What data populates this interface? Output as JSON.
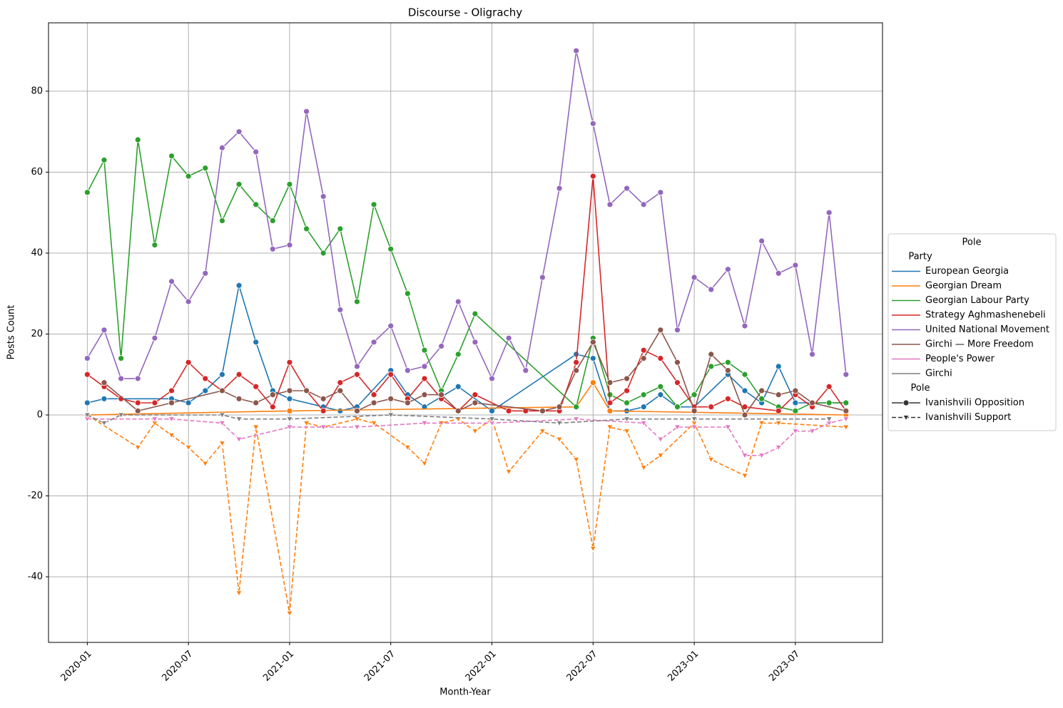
{
  "chart_data": {
    "type": "line",
    "title": "Discourse - Oligrachy",
    "x_label": "Month-Year",
    "y_label": "Posts Count",
    "xlim": [
      "2019-10-22",
      "2023-12-06"
    ],
    "xticks": [
      "2020-01",
      "2020-07",
      "2021-01",
      "2021-07",
      "2022-01",
      "2022-07",
      "2023-01",
      "2023-07"
    ],
    "ylim": [
      -56.2,
      96.9
    ],
    "yticks": [
      -40,
      -20,
      0,
      20,
      40,
      60,
      80
    ],
    "grid": true,
    "legend": {
      "title": "Pole",
      "position": "right",
      "hue_title": "Party",
      "style_title": "Pole"
    },
    "parties": [
      {
        "name": "European Georgia",
        "color": "#1f77b4"
      },
      {
        "name": "Georgian Dream",
        "color": "#ff7f0e"
      },
      {
        "name": "Georgian Labour Party",
        "color": "#2ca02c"
      },
      {
        "name": "Strategy Aghmashenebeli",
        "color": "#d62728"
      },
      {
        "name": "United National Movement",
        "color": "#9467bd"
      },
      {
        "name": "Girchi — More Freedom",
        "color": "#8c564b"
      },
      {
        "name": "People's Power",
        "color": "#e377c2"
      },
      {
        "name": "Girchi",
        "color": "#7f7f7f"
      }
    ],
    "poles": [
      {
        "name": "Ivanishvili Opposition",
        "marker": "circle",
        "dashed": false
      },
      {
        "name": "Ivanishvili Support",
        "marker": "triangle-down",
        "dashed": true
      }
    ],
    "series": [
      {
        "party": 0,
        "pole": 0,
        "x": [
          "2020-01",
          "2020-02",
          "2020-03",
          "2020-06",
          "2020-07",
          "2020-08",
          "2020-09",
          "2020-10",
          "2020-11",
          "2020-12",
          "2021-01",
          "2021-03",
          "2021-04",
          "2021-05",
          "2021-07",
          "2021-08",
          "2021-09",
          "2021-11",
          "2022-01",
          "2022-06",
          "2022-07",
          "2022-08",
          "2022-09",
          "2022-10",
          "2022-11",
          "2022-12",
          "2023-01",
          "2023-03",
          "2023-04",
          "2023-05",
          "2023-06",
          "2023-07",
          "2023-08",
          "2023-09",
          "2023-10"
        ],
        "values": [
          3,
          4,
          4,
          4,
          3,
          6,
          10,
          32,
          18,
          6,
          4,
          2,
          1,
          2,
          11,
          5,
          2,
          7,
          1,
          15,
          14,
          1,
          1,
          2,
          5,
          2,
          2,
          10,
          6,
          3,
          12,
          3,
          3,
          3,
          3
        ]
      },
      {
        "party": 1,
        "pole": 0,
        "x": [
          "2020-01",
          "2021-01",
          "2022-06",
          "2022-07",
          "2022-08",
          "2023-10"
        ],
        "values": [
          0,
          1,
          2,
          8,
          1,
          0
        ]
      },
      {
        "party": 1,
        "pole": 1,
        "x": [
          "2020-01",
          "2020-04",
          "2020-05",
          "2020-06",
          "2020-07",
          "2020-08",
          "2020-09",
          "2020-10",
          "2020-11",
          "2021-01",
          "2021-02",
          "2021-03",
          "2021-05",
          "2021-06",
          "2021-08",
          "2021-09",
          "2021-10",
          "2021-11",
          "2021-12",
          "2022-01",
          "2022-02",
          "2022-04",
          "2022-05",
          "2022-06",
          "2022-07",
          "2022-08",
          "2022-09",
          "2022-10",
          "2022-11",
          "2023-01",
          "2023-02",
          "2023-04",
          "2023-05",
          "2023-06",
          "2023-10"
        ],
        "values": [
          0,
          -8,
          -2,
          -5,
          -8,
          -12,
          -7,
          -44,
          -3,
          -49,
          -2,
          -3,
          -1,
          -2,
          -8,
          -12,
          -2,
          -1,
          -4,
          -1,
          -14,
          -4,
          -6,
          -11,
          -33,
          -3,
          -4,
          -13,
          -10,
          -2,
          -11,
          -15,
          -2,
          -2,
          -3
        ]
      },
      {
        "party": 2,
        "pole": 0,
        "x": [
          "2020-01",
          "2020-02",
          "2020-03",
          "2020-04",
          "2020-05",
          "2020-06",
          "2020-07",
          "2020-08",
          "2020-09",
          "2020-10",
          "2020-11",
          "2020-12",
          "2021-01",
          "2021-02",
          "2021-03",
          "2021-04",
          "2021-05",
          "2021-06",
          "2021-07",
          "2021-08",
          "2021-09",
          "2021-10",
          "2021-11",
          "2021-12",
          "2022-06",
          "2022-07",
          "2022-08",
          "2022-09",
          "2022-10",
          "2022-11",
          "2022-12",
          "2023-01",
          "2023-02",
          "2023-03",
          "2023-04",
          "2023-05",
          "2023-06",
          "2023-07",
          "2023-08",
          "2023-09",
          "2023-10"
        ],
        "values": [
          55,
          63,
          14,
          68,
          42,
          64,
          59,
          61,
          48,
          57,
          52,
          48,
          57,
          46,
          40,
          46,
          28,
          52,
          41,
          30,
          16,
          6,
          15,
          25,
          2,
          19,
          5,
          3,
          5,
          7,
          2,
          5,
          12,
          13,
          10,
          4,
          2,
          1,
          3,
          3,
          3
        ]
      },
      {
        "party": 3,
        "pole": 0,
        "x": [
          "2020-01",
          "2020-02",
          "2020-03",
          "2020-04",
          "2020-05",
          "2020-06",
          "2020-07",
          "2020-08",
          "2020-09",
          "2020-10",
          "2020-11",
          "2020-12",
          "2021-01",
          "2021-02",
          "2021-03",
          "2021-04",
          "2021-05",
          "2021-06",
          "2021-07",
          "2021-08",
          "2021-09",
          "2021-10",
          "2021-11",
          "2021-12",
          "2022-02",
          "2022-03",
          "2022-04",
          "2022-05",
          "2022-06",
          "2022-07",
          "2022-08",
          "2022-09",
          "2022-10",
          "2022-11",
          "2022-12",
          "2023-01",
          "2023-02",
          "2023-03",
          "2023-04",
          "2023-06",
          "2023-07",
          "2023-08",
          "2023-09",
          "2023-10"
        ],
        "values": [
          10,
          7,
          4,
          3,
          3,
          6,
          13,
          9,
          6,
          10,
          7,
          2,
          13,
          6,
          1,
          8,
          10,
          5,
          10,
          4,
          9,
          4,
          1,
          5,
          1,
          1,
          1,
          1,
          13,
          59,
          3,
          6,
          16,
          14,
          8,
          2,
          2,
          4,
          2,
          1,
          5,
          2,
          7,
          1
        ]
      },
      {
        "party": 4,
        "pole": 0,
        "x": [
          "2020-01",
          "2020-02",
          "2020-03",
          "2020-04",
          "2020-05",
          "2020-06",
          "2020-07",
          "2020-08",
          "2020-09",
          "2020-10",
          "2020-11",
          "2020-12",
          "2021-01",
          "2021-02",
          "2021-03",
          "2021-04",
          "2021-05",
          "2021-06",
          "2021-07",
          "2021-08",
          "2021-09",
          "2021-10",
          "2021-11",
          "2021-12",
          "2022-01",
          "2022-02",
          "2022-03",
          "2022-04",
          "2022-05",
          "2022-06",
          "2022-07",
          "2022-08",
          "2022-09",
          "2022-10",
          "2022-11",
          "2022-12",
          "2023-01",
          "2023-02",
          "2023-03",
          "2023-04",
          "2023-05",
          "2023-06",
          "2023-07",
          "2023-08",
          "2023-09",
          "2023-10"
        ],
        "values": [
          14,
          21,
          9,
          9,
          19,
          33,
          28,
          35,
          66,
          70,
          65,
          41,
          42,
          75,
          54,
          26,
          12,
          18,
          22,
          11,
          12,
          17,
          28,
          18,
          9,
          19,
          11,
          34,
          56,
          90,
          72,
          52,
          56,
          52,
          55,
          21,
          34,
          31,
          36,
          22,
          43,
          35,
          37,
          15,
          50,
          10
        ]
      },
      {
        "party": 5,
        "pole": 0,
        "x": [
          "2020-02",
          "2020-04",
          "2020-06",
          "2020-09",
          "2020-10",
          "2020-11",
          "2020-12",
          "2021-01",
          "2021-02",
          "2021-03",
          "2021-04",
          "2021-05",
          "2021-06",
          "2021-07",
          "2021-08",
          "2021-09",
          "2021-10",
          "2021-11",
          "2021-12",
          "2022-04",
          "2022-05",
          "2022-06",
          "2022-07",
          "2022-08",
          "2022-09",
          "2022-10",
          "2022-11",
          "2022-12",
          "2023-01",
          "2023-02",
          "2023-03",
          "2023-04",
          "2023-05",
          "2023-06",
          "2023-07",
          "2023-08",
          "2023-10"
        ],
        "values": [
          8,
          1,
          3,
          6,
          4,
          3,
          5,
          6,
          6,
          4,
          6,
          1,
          3,
          4,
          3,
          5,
          5,
          1,
          3,
          1,
          2,
          11,
          18,
          8,
          9,
          14,
          21,
          13,
          1,
          15,
          11,
          0,
          6,
          5,
          6,
          3,
          1
        ]
      },
      {
        "party": 6,
        "pole": 1,
        "x": [
          "2020-01",
          "2020-05",
          "2020-06",
          "2020-09",
          "2020-10",
          "2021-01",
          "2021-03",
          "2021-05",
          "2021-09",
          "2022-01",
          "2022-06",
          "2022-10",
          "2022-11",
          "2022-12",
          "2023-01",
          "2023-03",
          "2023-04",
          "2023-05",
          "2023-06",
          "2023-07",
          "2023-08",
          "2023-09",
          "2023-10"
        ],
        "values": [
          -1,
          -1,
          -1,
          -2,
          -6,
          -3,
          -3,
          -3,
          -2,
          -2,
          -1,
          -2,
          -6,
          -3,
          -3,
          -3,
          -10,
          -10,
          -8,
          -4,
          -4,
          -2,
          -1
        ]
      },
      {
        "party": 7,
        "pole": 1,
        "x": [
          "2020-01",
          "2020-02",
          "2020-03",
          "2020-09",
          "2020-10",
          "2021-01",
          "2021-07",
          "2022-01",
          "2022-05",
          "2022-09",
          "2023-01",
          "2023-09"
        ],
        "values": [
          0,
          -2,
          0,
          0,
          -1,
          -1,
          0,
          -1,
          -2,
          -1,
          -1,
          -1
        ]
      }
    ]
  }
}
